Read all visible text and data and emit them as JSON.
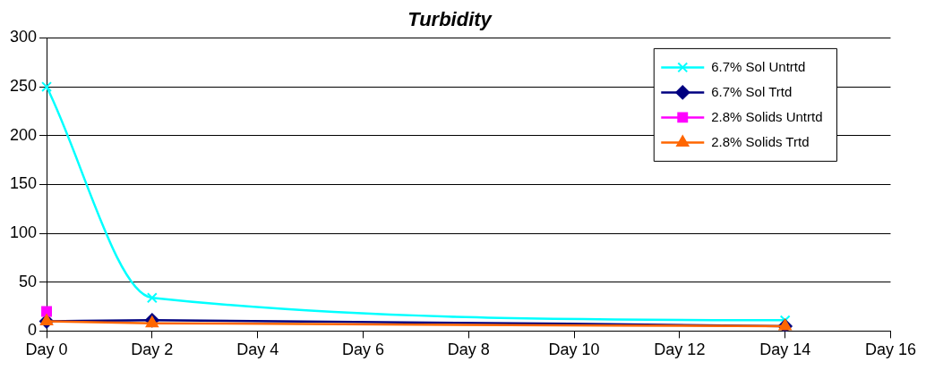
{
  "chart_data": {
    "type": "line",
    "title": "Turbidity",
    "categories": [
      "Day 0",
      "Day 2",
      "Day 4",
      "Day 6",
      "Day 8",
      "Day 10",
      "Day 12",
      "Day 14",
      "Day 16"
    ],
    "ylim": [
      0,
      300
    ],
    "yticks": [
      0,
      50,
      100,
      150,
      200,
      250,
      300
    ],
    "grid": "y",
    "legend": "top right",
    "series": [
      {
        "name": "6.7% Sol Untrtd",
        "color": "#00ffff",
        "marker": "cross",
        "values": [
          250,
          34,
          null,
          null,
          null,
          null,
          null,
          11,
          null
        ]
      },
      {
        "name": "6.7% Sol Trtd",
        "color": "#000080",
        "marker": "diamond",
        "values": [
          10,
          11,
          null,
          null,
          null,
          null,
          null,
          5,
          null
        ]
      },
      {
        "name": "2.8% Solids Untrtd",
        "color": "#ff00ff",
        "marker": "square",
        "values": [
          20,
          null,
          null,
          null,
          null,
          null,
          null,
          null,
          null
        ]
      },
      {
        "name": "2.8% Solids Trtd",
        "color": "#ff6600",
        "marker": "triangle",
        "values": [
          10,
          8,
          null,
          null,
          null,
          null,
          null,
          5,
          null
        ]
      }
    ]
  }
}
